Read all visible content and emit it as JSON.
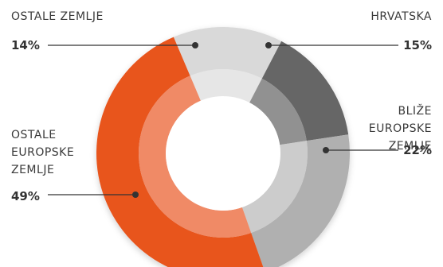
{
  "chart_data": {
    "type": "pie",
    "title": "",
    "categories": [
      "OSTALE ZEMLJE",
      "HRVATSKA",
      "BLIŽE EUROPSKE ZEMLJE",
      "OSTALE EUROPSKE ZEMLJE"
    ],
    "values": [
      14,
      15,
      22,
      49
    ],
    "value_labels": [
      "14%",
      "15%",
      "22%",
      "49%"
    ],
    "label_lines": [
      [
        "OSTALE ZEMLJE"
      ],
      [
        "HRVATSKA"
      ],
      [
        "BLIŽE",
        "EUROPSKE",
        "ZEMLJE"
      ],
      [
        "OSTALE",
        "EUROPSKE",
        "ZEMLJE"
      ]
    ],
    "colors": {
      "outer": [
        "#d9d9d9",
        "#666666",
        "#b0b0b0",
        "#e8541e"
      ],
      "inner": [
        "#e6e6e6",
        "#919191",
        "#cccccc",
        "#f08a66"
      ],
      "connector": "#333333"
    },
    "legend": "callouts"
  }
}
